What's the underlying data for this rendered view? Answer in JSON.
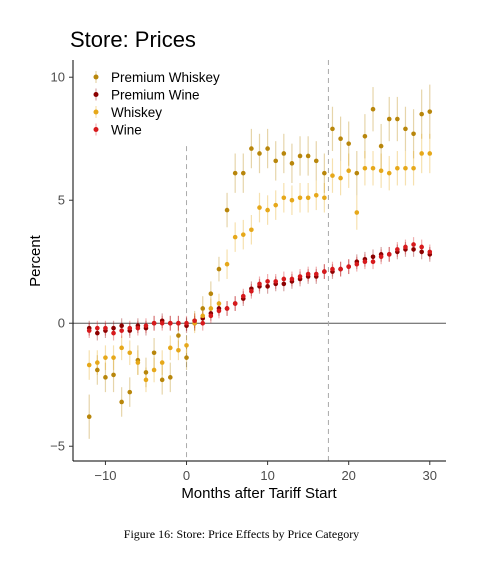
{
  "figure": {
    "caption": "Figure 16: Store: Price Effects by Price Category"
  },
  "chart_data": {
    "type": "scatter",
    "title": "Store: Prices",
    "xlabel": "Months after Tariff Start",
    "ylabel": "Percent",
    "xlim": [
      -14,
      32
    ],
    "ylim": [
      -5.6,
      10.7
    ],
    "x_ticks": [
      -10,
      0,
      10,
      20,
      30
    ],
    "x_tick_labels": [
      "−10",
      "0",
      "10",
      "20",
      "30"
    ],
    "y_ticks": [
      -5,
      0,
      5,
      10
    ],
    "y_tick_labels": [
      "−5",
      "0",
      "5",
      "10"
    ],
    "reference_lines": {
      "horizontal_y": 0,
      "vertical_dashed_x": [
        0,
        17.5
      ]
    },
    "grid": false,
    "legend_position": "top-left",
    "error_bars": true,
    "series": [
      {
        "name": "Premium Whiskey",
        "color": "#b8860b",
        "x": [
          -12,
          -11,
          -10,
          -9,
          -8,
          -7,
          -6,
          -5,
          -4,
          -3,
          -2,
          -1,
          0,
          1,
          2,
          3,
          4,
          5,
          6,
          7,
          8,
          9,
          10,
          11,
          12,
          13,
          14,
          15,
          16,
          17,
          18,
          19,
          20,
          21,
          22,
          23,
          24,
          25,
          26,
          27,
          28,
          29,
          30
        ],
        "y": [
          -3.8,
          -1.9,
          -2.2,
          -2.1,
          -3.2,
          -2.8,
          -1.5,
          -2.0,
          -1.2,
          -2.3,
          -2.2,
          -0.5,
          -1.4,
          0.1,
          0.6,
          1.2,
          2.2,
          4.6,
          6.1,
          6.1,
          7.1,
          6.9,
          7.1,
          6.6,
          6.9,
          6.5,
          6.8,
          6.8,
          6.6,
          6.1,
          7.9,
          7.5,
          7.3,
          6.1,
          7.6,
          8.7,
          7.2,
          8.3,
          8.3,
          7.9,
          7.7,
          8.5,
          8.6
        ],
        "err": [
          0.9,
          0.6,
          0.6,
          0.7,
          0.6,
          0.6,
          0.6,
          0.6,
          0.6,
          0.6,
          0.6,
          0.5,
          0.5,
          0.4,
          0.5,
          0.5,
          0.5,
          0.7,
          0.8,
          0.8,
          0.8,
          0.8,
          0.8,
          0.8,
          0.8,
          0.8,
          0.8,
          0.8,
          0.8,
          0.8,
          0.9,
          0.9,
          0.9,
          0.9,
          0.9,
          0.9,
          0.9,
          0.9,
          0.9,
          0.9,
          1.0,
          1.0,
          1.1
        ]
      },
      {
        "name": "Premium Wine",
        "color": "#8b0000",
        "x": [
          -12,
          -11,
          -10,
          -9,
          -8,
          -7,
          -6,
          -5,
          -4,
          -3,
          -2,
          -1,
          0,
          1,
          2,
          3,
          4,
          5,
          6,
          7,
          8,
          9,
          10,
          11,
          12,
          13,
          14,
          15,
          16,
          17,
          18,
          19,
          20,
          21,
          22,
          23,
          24,
          25,
          26,
          27,
          28,
          29,
          30
        ],
        "y": [
          -0.2,
          -0.4,
          -0.3,
          -0.2,
          -0.1,
          -0.3,
          -0.1,
          -0.2,
          0.0,
          0.1,
          0.0,
          0.0,
          -0.1,
          0.0,
          0.2,
          0.4,
          0.6,
          0.6,
          0.8,
          1.0,
          1.4,
          1.5,
          1.5,
          1.6,
          1.6,
          1.7,
          1.8,
          1.9,
          1.9,
          2.1,
          2.1,
          2.2,
          2.3,
          2.5,
          2.6,
          2.7,
          2.8,
          2.8,
          2.9,
          3.0,
          3.0,
          2.9,
          2.8
        ],
        "err": [
          0.3,
          0.3,
          0.3,
          0.3,
          0.3,
          0.3,
          0.3,
          0.3,
          0.3,
          0.3,
          0.3,
          0.3,
          0.3,
          0.3,
          0.3,
          0.3,
          0.3,
          0.3,
          0.3,
          0.3,
          0.3,
          0.3,
          0.3,
          0.3,
          0.3,
          0.3,
          0.3,
          0.3,
          0.3,
          0.3,
          0.3,
          0.3,
          0.3,
          0.3,
          0.3,
          0.3,
          0.3,
          0.3,
          0.3,
          0.3,
          0.3,
          0.3,
          0.3
        ]
      },
      {
        "name": "Whiskey",
        "color": "#e6a81a",
        "x": [
          -12,
          -11,
          -10,
          -9,
          -8,
          -7,
          -6,
          -5,
          -4,
          -3,
          -2,
          -1,
          0,
          1,
          2,
          3,
          4,
          5,
          6,
          7,
          8,
          9,
          10,
          11,
          12,
          13,
          14,
          15,
          16,
          17,
          18,
          19,
          20,
          21,
          22,
          23,
          24,
          25,
          26,
          27,
          28,
          29,
          30
        ],
        "y": [
          -1.7,
          -1.6,
          -1.4,
          -1.4,
          -1.0,
          -1.2,
          -1.6,
          -2.3,
          -1.9,
          -1.6,
          -1.0,
          -1.1,
          -0.9,
          0.0,
          0.3,
          0.6,
          0.8,
          2.4,
          3.5,
          3.6,
          3.8,
          4.7,
          4.6,
          4.8,
          5.1,
          5.0,
          5.1,
          5.1,
          5.2,
          5.1,
          6.0,
          5.9,
          6.2,
          4.5,
          6.3,
          6.3,
          6.2,
          6.1,
          6.3,
          6.3,
          6.3,
          6.9,
          6.9
        ],
        "err": [
          0.6,
          0.5,
          0.5,
          0.5,
          0.5,
          0.5,
          0.5,
          0.5,
          0.5,
          0.5,
          0.5,
          0.4,
          0.4,
          0.4,
          0.4,
          0.4,
          0.4,
          0.6,
          0.6,
          0.6,
          0.6,
          0.6,
          0.6,
          0.6,
          0.6,
          0.6,
          0.6,
          0.6,
          0.6,
          0.6,
          0.7,
          0.7,
          0.7,
          0.7,
          0.7,
          0.7,
          0.7,
          0.7,
          0.7,
          0.7,
          0.7,
          0.8,
          0.8
        ]
      },
      {
        "name": "Wine",
        "color": "#d7191c",
        "x": [
          -12,
          -11,
          -10,
          -9,
          -8,
          -7,
          -6,
          -5,
          -4,
          -3,
          -2,
          -1,
          0,
          1,
          2,
          3,
          4,
          5,
          6,
          7,
          8,
          9,
          10,
          11,
          12,
          13,
          14,
          15,
          16,
          17,
          18,
          19,
          20,
          21,
          22,
          23,
          24,
          25,
          26,
          27,
          28,
          29,
          30
        ],
        "y": [
          -0.3,
          -0.2,
          -0.2,
          -0.4,
          -0.3,
          -0.2,
          -0.2,
          -0.1,
          0.0,
          0.0,
          0.0,
          0.0,
          0.0,
          0.1,
          0.0,
          0.3,
          0.5,
          0.6,
          0.8,
          1.1,
          1.3,
          1.6,
          1.7,
          1.7,
          1.8,
          1.8,
          1.9,
          2.0,
          2.0,
          2.1,
          2.2,
          2.2,
          2.3,
          2.4,
          2.5,
          2.5,
          2.7,
          2.8,
          3.0,
          3.1,
          3.2,
          3.1,
          2.9
        ],
        "err": [
          0.3,
          0.3,
          0.3,
          0.3,
          0.3,
          0.3,
          0.3,
          0.3,
          0.3,
          0.3,
          0.3,
          0.3,
          0.3,
          0.3,
          0.3,
          0.3,
          0.3,
          0.3,
          0.3,
          0.3,
          0.3,
          0.3,
          0.3,
          0.3,
          0.3,
          0.3,
          0.3,
          0.3,
          0.3,
          0.3,
          0.3,
          0.3,
          0.3,
          0.3,
          0.3,
          0.3,
          0.3,
          0.3,
          0.3,
          0.3,
          0.3,
          0.3,
          0.3
        ]
      }
    ]
  }
}
